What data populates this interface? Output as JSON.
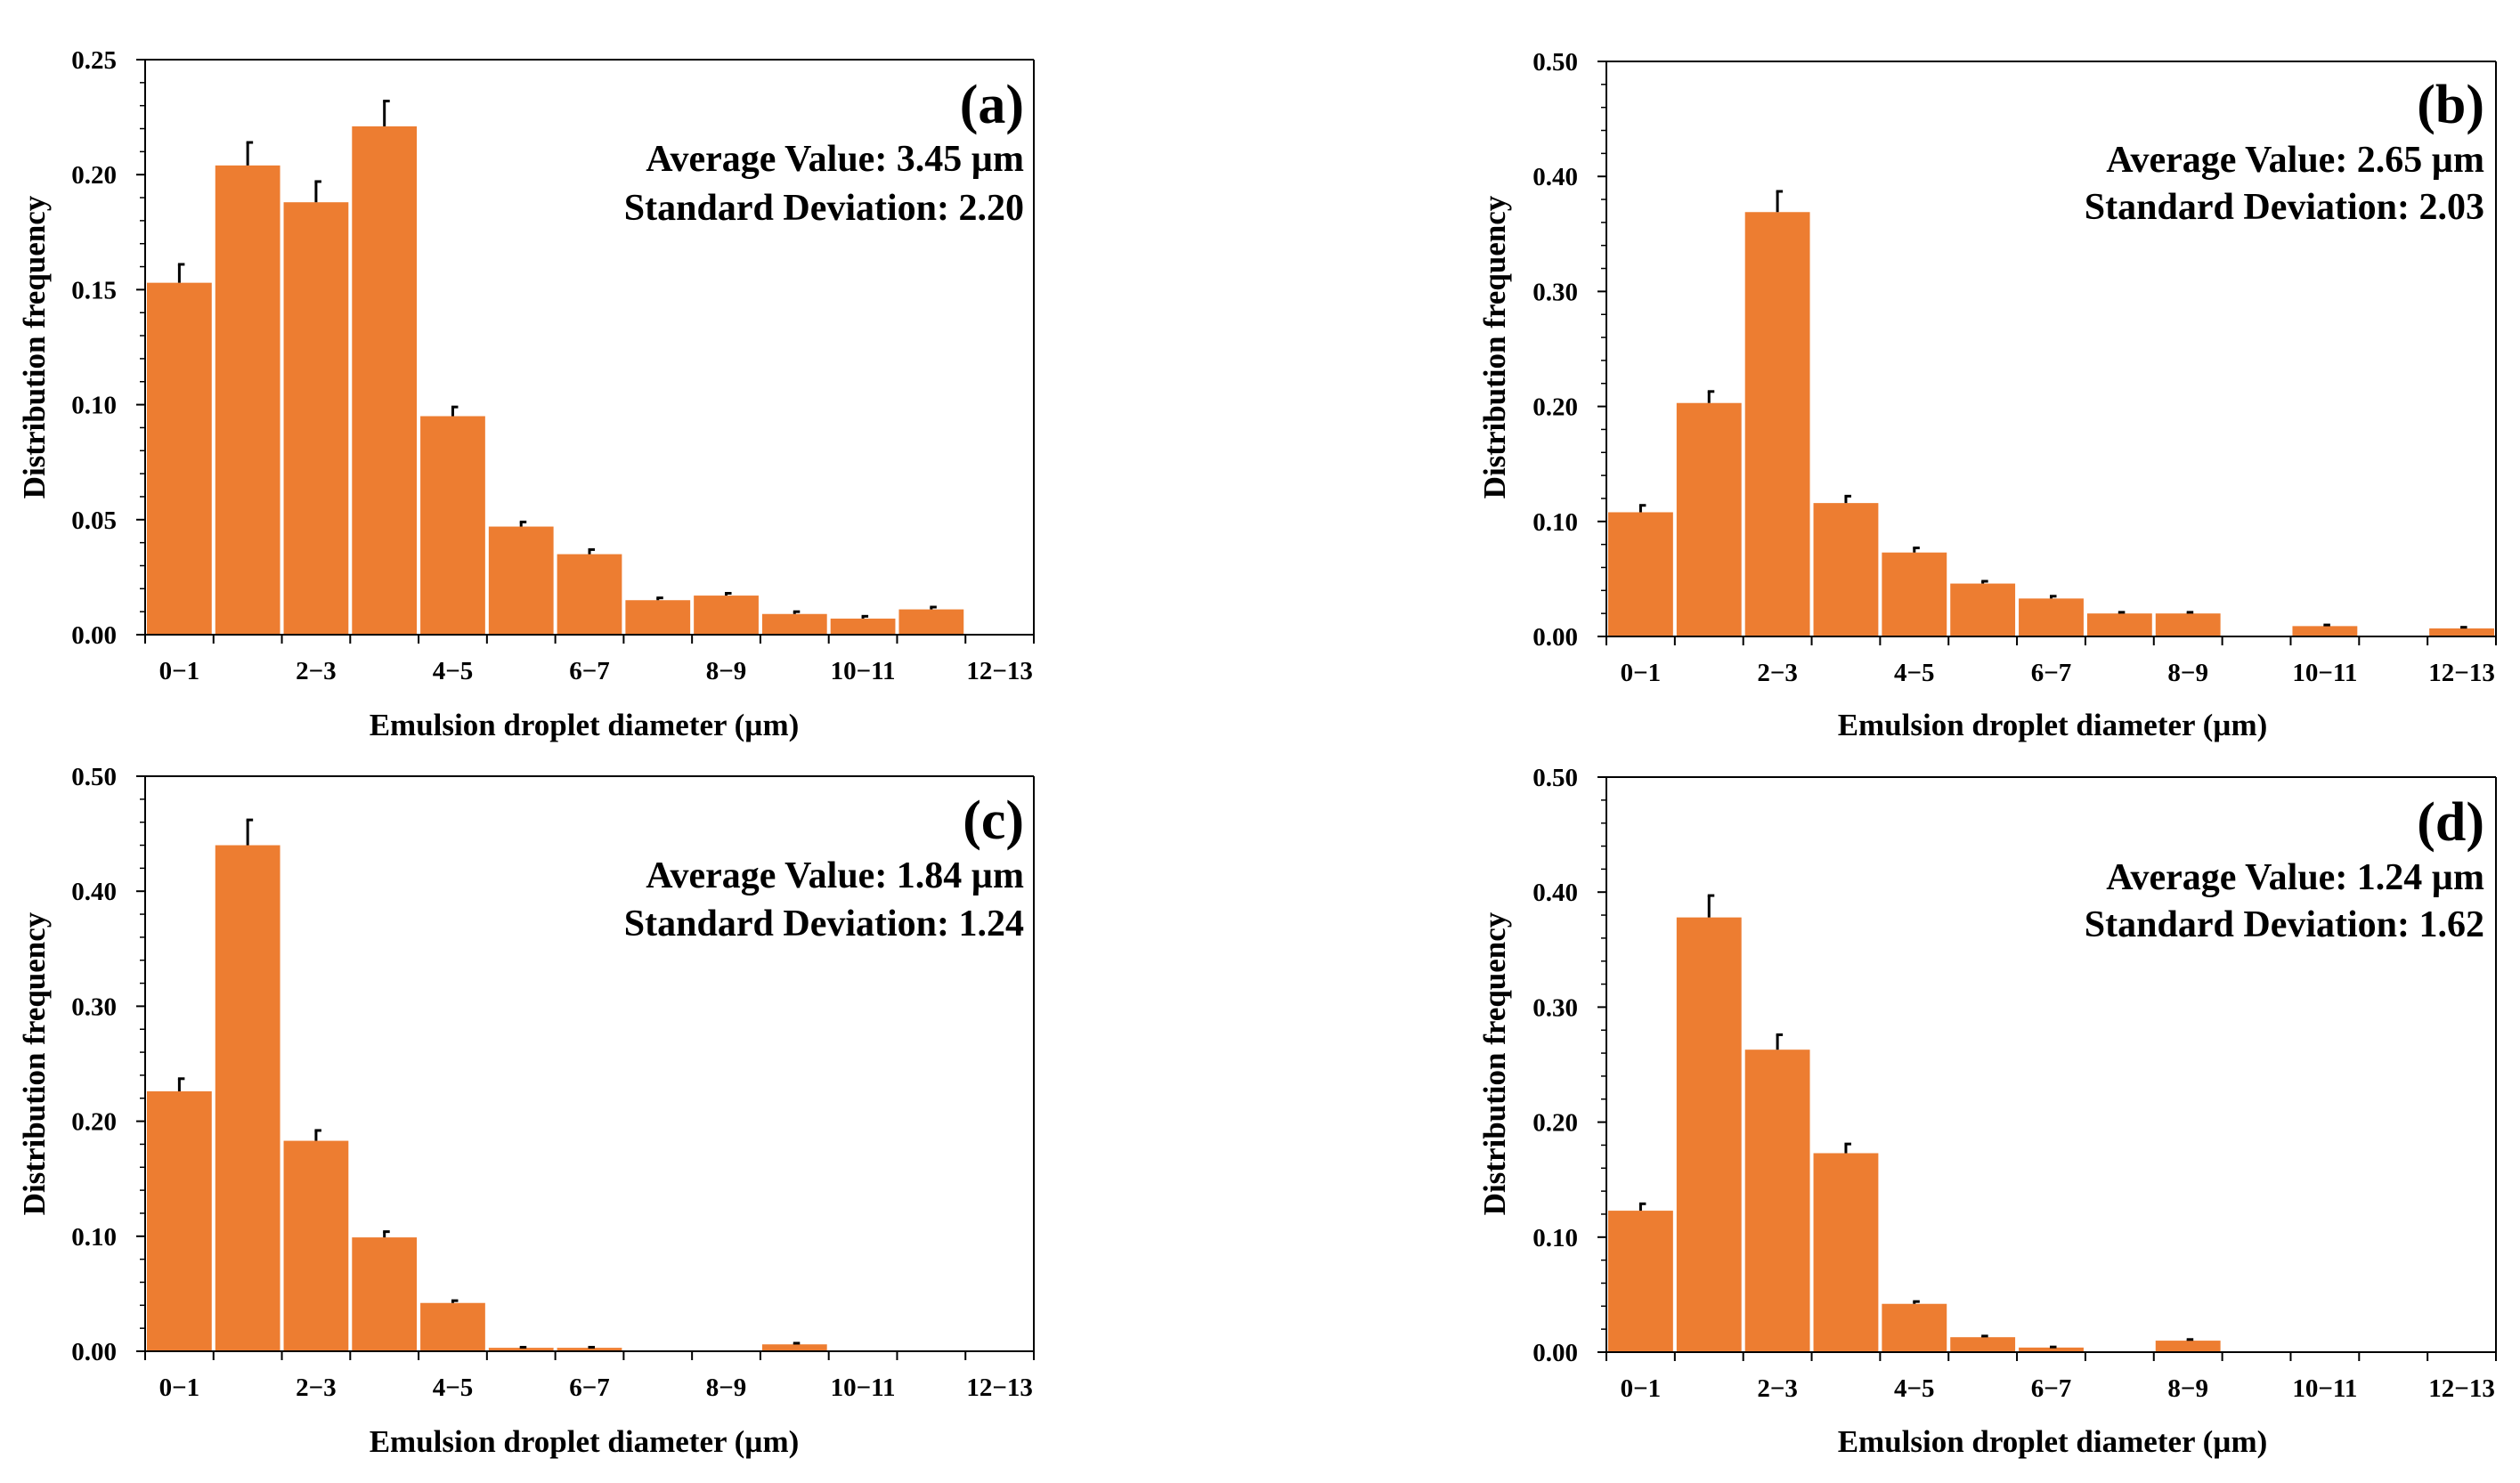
{
  "colors": {
    "bar": "#ED7D31",
    "error_bar": "#000000",
    "axis": "#000000"
  },
  "chart_data": [
    {
      "type": "bar",
      "panel": "(a)",
      "average_text": "Average Value: 3.45 µm",
      "std_text": "Standard Deviation: 2.20",
      "xlabel": "Emulsion droplet diameter (µm)",
      "ylabel": "Distribution frequency",
      "ylim": [
        0,
        0.25
      ],
      "ytick_labels": [
        "0.00",
        "0.05",
        "0.10",
        "0.15",
        "0.20",
        "0.25"
      ],
      "xtick_labels": [
        "0−1",
        "2−3",
        "4−5",
        "6−7",
        "8−9",
        "10−11",
        "12−13"
      ],
      "categories": [
        "0-1",
        "1-2",
        "2-3",
        "3-4",
        "4-5",
        "5-6",
        "6-7",
        "7-8",
        "8-9",
        "9-10",
        "10-11",
        "11-12",
        "12-13"
      ],
      "values": [
        0.153,
        0.204,
        0.188,
        0.221,
        0.095,
        0.047,
        0.035,
        0.015,
        0.017,
        0.009,
        0.007,
        0.011,
        0
      ],
      "errors": [
        0.008,
        0.01,
        0.009,
        0.011,
        0.004,
        0.002,
        0.002,
        0.001,
        0.001,
        0.001,
        0.001,
        0.001,
        0
      ]
    },
    {
      "type": "bar",
      "panel": "(b)",
      "average_text": "Average Value: 2.65 µm",
      "std_text": "Standard Deviation: 2.03",
      "xlabel": "Emulsion droplet diameter (µm)",
      "ylabel": "Distribution frequency",
      "ylim": [
        0,
        0.5
      ],
      "ytick_labels": [
        "0.00",
        "0.10",
        "0.20",
        "0.30",
        "0.40",
        "0.50"
      ],
      "xtick_labels": [
        "0−1",
        "2−3",
        "4−5",
        "6−7",
        "8−9",
        "10−11",
        "12−13"
      ],
      "categories": [
        "0-1",
        "1-2",
        "2-3",
        "3-4",
        "4-5",
        "5-6",
        "6-7",
        "7-8",
        "8-9",
        "9-10",
        "10-11",
        "11-12",
        "12-13"
      ],
      "values": [
        0.108,
        0.203,
        0.369,
        0.116,
        0.073,
        0.046,
        0.033,
        0.02,
        0.02,
        0,
        0.009,
        0,
        0.007
      ],
      "errors": [
        0.006,
        0.01,
        0.018,
        0.006,
        0.004,
        0.002,
        0.002,
        0.001,
        0.001,
        0,
        0.001,
        0,
        0.001
      ]
    },
    {
      "type": "bar",
      "panel": "(c)",
      "average_text": "Average Value: 1.84 µm",
      "std_text": "Standard Deviation: 1.24",
      "xlabel": "Emulsion droplet diameter (µm)",
      "ylabel": "Distribution frequency",
      "ylim": [
        0,
        0.5
      ],
      "ytick_labels": [
        "0.00",
        "0.10",
        "0.20",
        "0.30",
        "0.40",
        "0.50"
      ],
      "xtick_labels": [
        "0−1",
        "2−3",
        "4−5",
        "6−7",
        "8−9",
        "10−11",
        "12−13"
      ],
      "categories": [
        "0-1",
        "1-2",
        "2-3",
        "3-4",
        "4-5",
        "5-6",
        "6-7",
        "7-8",
        "8-9",
        "9-10",
        "10-11",
        "11-12",
        "12-13"
      ],
      "values": [
        0.226,
        0.44,
        0.183,
        0.099,
        0.042,
        0.003,
        0.003,
        0,
        0,
        0.006,
        0,
        0,
        0
      ],
      "errors": [
        0.011,
        0.022,
        0.009,
        0.005,
        0.002,
        0.0005,
        0.0005,
        0,
        0,
        0.001,
        0,
        0,
        0
      ]
    },
    {
      "type": "bar",
      "panel": "(d)",
      "average_text": "Average Value: 1.24 µm",
      "std_text": "Standard Deviation: 1.62",
      "xlabel": "Emulsion droplet diameter (µm)",
      "ylabel": "Distribution frequency",
      "ylim": [
        0,
        0.5
      ],
      "ytick_labels": [
        "0.00",
        "0.10",
        "0.20",
        "0.30",
        "0.40",
        "0.50"
      ],
      "xtick_labels": [
        "0−1",
        "2−3",
        "4−5",
        "6−7",
        "8−9",
        "10−11",
        "12−13"
      ],
      "categories": [
        "0-1",
        "1-2",
        "2-3",
        "3-4",
        "4-5",
        "5-6",
        "6-7",
        "7-8",
        "8-9",
        "9-10",
        "10-11",
        "11-12",
        "12-13"
      ],
      "values": [
        0.123,
        0.378,
        0.263,
        0.173,
        0.042,
        0.013,
        0.004,
        0,
        0.01,
        0,
        0,
        0,
        0
      ],
      "errors": [
        0.006,
        0.019,
        0.013,
        0.008,
        0.002,
        0.001,
        0.0005,
        0,
        0.001,
        0,
        0,
        0,
        0
      ]
    }
  ]
}
